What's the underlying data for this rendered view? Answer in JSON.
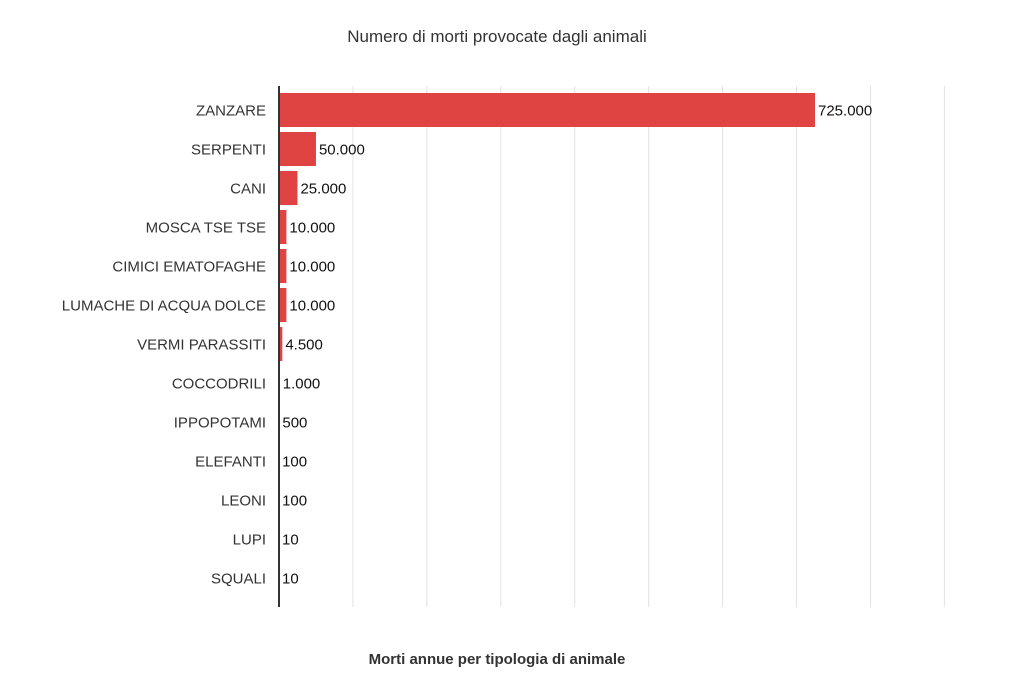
{
  "chart_data": {
    "type": "bar",
    "orientation": "horizontal",
    "title": "Numero di morti provocate dagli animali",
    "xlabel": "Morti annue per tipologia di animale",
    "ylabel": "",
    "categories": [
      "ZANZARE",
      "SERPENTI",
      "CANI",
      "MOSCA TSE TSE",
      "CIMICI EMATOFAGHE",
      "LUMACHE DI ACQUA DOLCE",
      "VERMI PARASSITI",
      "COCCODRILI",
      "IPPOPOTAMI",
      "ELEFANTI",
      "LEONI",
      "LUPI",
      "SQUALI"
    ],
    "values": [
      725000,
      50000,
      25000,
      10000,
      10000,
      10000,
      4500,
      1000,
      500,
      100,
      100,
      10,
      10
    ],
    "value_labels": [
      "725.000",
      "50.000",
      "25.000",
      "10.000",
      "10.000",
      "10.000",
      "4.500",
      "1.000",
      "500",
      "100",
      "100",
      "10",
      "10"
    ],
    "xlim": [
      0,
      900000
    ],
    "grid": true,
    "legend": "none",
    "bar_color": "#e04442"
  }
}
